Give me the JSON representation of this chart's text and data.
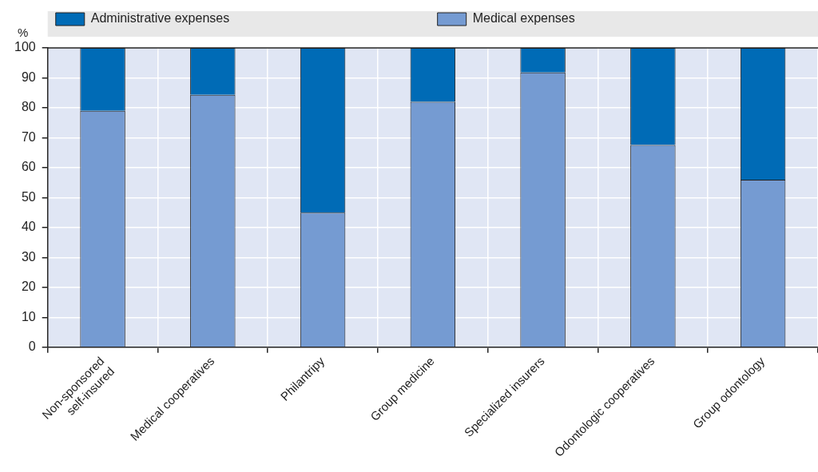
{
  "chart_data": {
    "type": "bar",
    "ylabel": "%",
    "categories": [
      "Non-sponsored\nself-insured",
      "Medical cooperatives",
      "Philantripy",
      "Group medicine",
      "Specialized insurers",
      "Odontologic cooperatives",
      "Group odontology"
    ],
    "series": [
      {
        "name": "Medical expenses",
        "color": "#759bd2",
        "values": [
          79,
          84.3,
          45,
          82,
          91.8,
          67.6,
          56
        ]
      },
      {
        "name": "Administrative expenses",
        "color": "#006bb6",
        "values": [
          21,
          15.7,
          55,
          18,
          8.2,
          32.4,
          44
        ]
      }
    ],
    "stacked": true,
    "ylim": [
      0,
      100
    ],
    "yticks": [
      0,
      10,
      20,
      30,
      40,
      50,
      60,
      70,
      80,
      90,
      100
    ],
    "grid": true,
    "legend": "top"
  }
}
